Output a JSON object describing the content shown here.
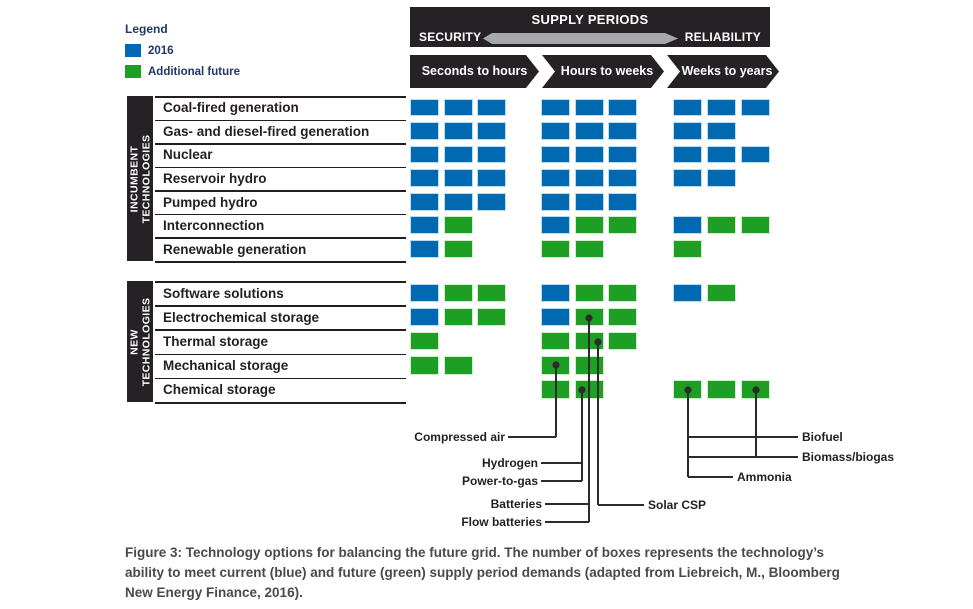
{
  "legend": {
    "title": "Legend",
    "items": [
      {
        "id": "legend-2016",
        "label": "2016",
        "color": "#0069b1"
      },
      {
        "id": "legend-additional-future",
        "label": "Additional future",
        "color": "#1f9e26"
      }
    ]
  },
  "header": {
    "title": "SUPPLY PERIODS",
    "left": "SECURITY",
    "right": "RELIABILITY"
  },
  "columns": [
    "Seconds to hours",
    "Hours to weeks",
    "Weeks to years"
  ],
  "colors": {
    "blue_2016": "#0069b1",
    "green_future": "#1f9e26",
    "header_dark": "#262124",
    "arrow_gray": "#a6a8ab"
  },
  "sections": [
    {
      "label": "INCUMBENT TECHNOLOGIES",
      "rows": [
        {
          "label": "Coal-fired generation",
          "cols": [
            [
              "b",
              "b",
              "b"
            ],
            [
              "b",
              "b",
              "b"
            ],
            [
              "b",
              "b",
              "b"
            ]
          ]
        },
        {
          "label": "Gas- and diesel-fired generation",
          "cols": [
            [
              "b",
              "b",
              "b"
            ],
            [
              "b",
              "b",
              "b"
            ],
            [
              "b",
              "b"
            ]
          ]
        },
        {
          "label": "Nuclear",
          "cols": [
            [
              "b",
              "b",
              "b"
            ],
            [
              "b",
              "b",
              "b"
            ],
            [
              "b",
              "b",
              "b"
            ]
          ]
        },
        {
          "label": "Reservoir hydro",
          "cols": [
            [
              "b",
              "b",
              "b"
            ],
            [
              "b",
              "b",
              "b"
            ],
            [
              "b",
              "b"
            ]
          ]
        },
        {
          "label": "Pumped hydro",
          "cols": [
            [
              "b",
              "b",
              "b"
            ],
            [
              "b",
              "b",
              "b"
            ],
            []
          ]
        },
        {
          "label": "Interconnection",
          "cols": [
            [
              "b",
              "g"
            ],
            [
              "b",
              "g",
              "g"
            ],
            [
              "b",
              "g",
              "g"
            ]
          ]
        },
        {
          "label": "Renewable generation",
          "cols": [
            [
              "b",
              "g"
            ],
            [
              "g",
              "g"
            ],
            [
              "g"
            ]
          ]
        }
      ]
    },
    {
      "label": "NEW TECHNOLOGIES",
      "rows": [
        {
          "label": "Software solutions",
          "cols": [
            [
              "b",
              "g",
              "g"
            ],
            [
              "b",
              "g",
              "g"
            ],
            [
              "b",
              "g"
            ]
          ]
        },
        {
          "label": "Electrochemical storage",
          "cols": [
            [
              "b",
              "g",
              "g"
            ],
            [
              "b",
              "g",
              "g"
            ],
            []
          ]
        },
        {
          "label": "Thermal storage",
          "cols": [
            [
              "g"
            ],
            [
              "g",
              "g",
              "g"
            ],
            []
          ]
        },
        {
          "label": "Mechanical storage",
          "cols": [
            [
              "g",
              "g"
            ],
            [
              "g",
              "g"
            ],
            []
          ]
        },
        {
          "label": "Chemical storage",
          "cols": [
            [],
            [
              "g",
              "g"
            ],
            [
              "g",
              "g",
              "g"
            ]
          ]
        }
      ]
    }
  ],
  "callouts": [
    {
      "id": "compressed-air",
      "label": "Compressed air"
    },
    {
      "id": "hydrogen",
      "label": "Hydrogen"
    },
    {
      "id": "power-to-gas",
      "label": "Power-to-gas"
    },
    {
      "id": "batteries",
      "label": "Batteries"
    },
    {
      "id": "flow-batteries",
      "label": "Flow batteries"
    },
    {
      "id": "solar-csp",
      "label": "Solar CSP"
    },
    {
      "id": "biofuel",
      "label": "Biofuel"
    },
    {
      "id": "biomass-biogas",
      "label": "Biomass/biogas"
    },
    {
      "id": "ammonia",
      "label": "Ammonia"
    }
  ],
  "caption": "Figure 3: Technology options for balancing the future grid. The number of boxes represents the technology’s ability to meet current (blue) and future (green) supply period demands (adapted from Liebreich, M., Bloomberg New Energy Finance, 2016)."
}
